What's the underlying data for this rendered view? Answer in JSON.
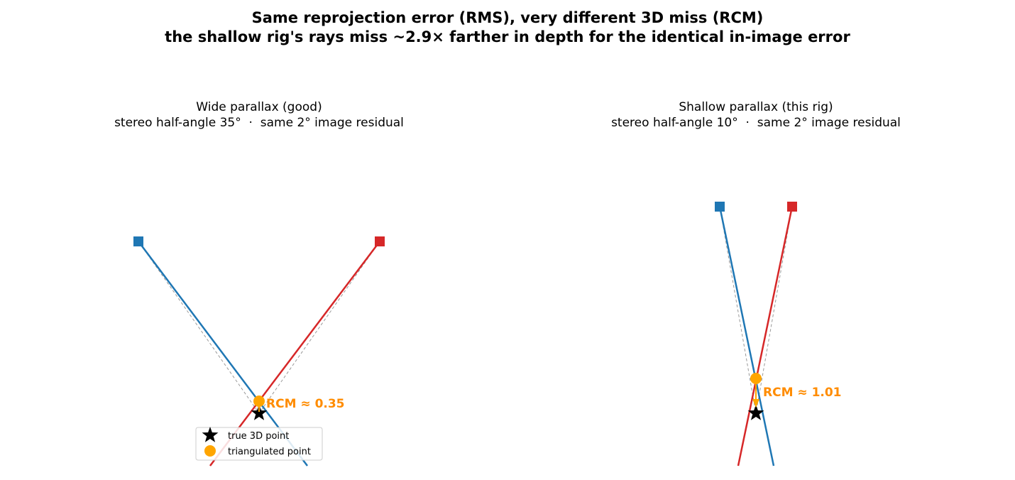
{
  "header": {
    "title": "Same reprojection error (RMS), very different 3D miss (RCM)",
    "subtitle": "the shallow rig's rays miss ~2.9× farther in depth for the identical in-image error"
  },
  "panels": [
    {
      "title": "Wide parallax (good)",
      "subtitle": "stereo half-angle 35°  ·  same 2° image residual",
      "annotation": "RCM ≈ 0.35",
      "legend": [
        "true 3D point",
        "triangulated point"
      ]
    },
    {
      "title": "Shallow parallax (this rig)",
      "subtitle": "stereo half-angle 10°  ·  same 2° image residual",
      "annotation": "RCM ≈ 1.01"
    }
  ]
}
